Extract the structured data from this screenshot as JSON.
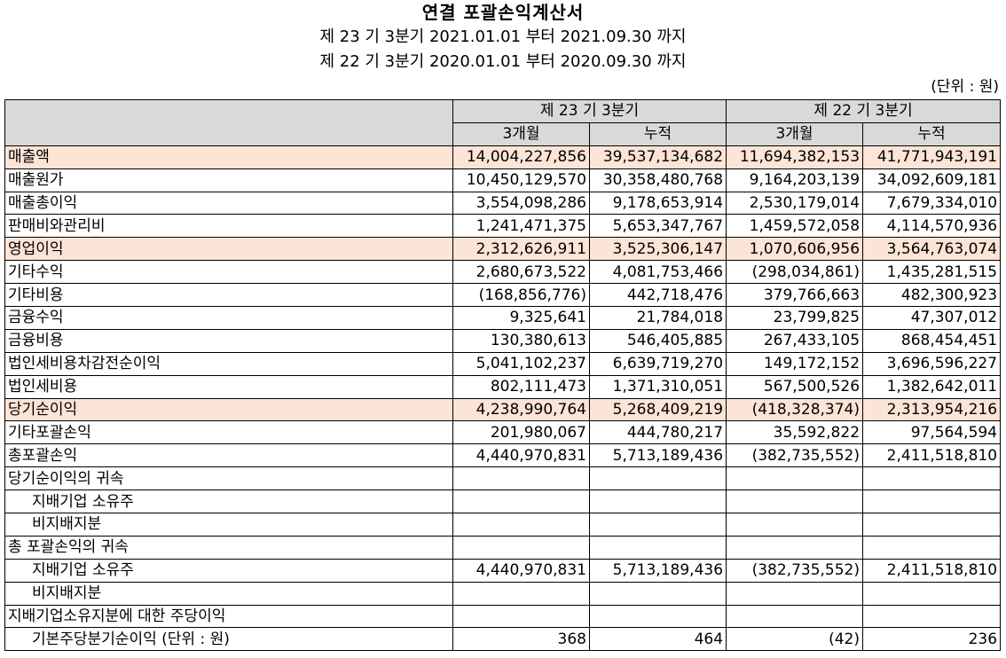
{
  "title": "연결 포괄손익계산서",
  "period_current": "제 23 기 3분기 2021.01.01 부터 2021.09.30 까지",
  "period_prior": "제 22 기 3분기 2020.01.01 부터 2020.09.30 까지",
  "unit": "(단위 : 원)",
  "columns": {
    "current_period": "제 23 기 3분기",
    "prior_period": "제 22 기 3분기",
    "three_month": "3개월",
    "cumulative": "누적"
  },
  "rows": [
    {
      "label": "매출액",
      "highlight": true,
      "values": [
        "14,004,227,856",
        "39,537,134,682",
        "11,694,382,153",
        "41,771,943,191"
      ]
    },
    {
      "label": "매출원가",
      "values": [
        "10,450,129,570",
        "30,358,480,768",
        "9,164,203,139",
        "34,092,609,181"
      ]
    },
    {
      "label": "매출총이익",
      "values": [
        "3,554,098,286",
        "9,178,653,914",
        "2,530,179,014",
        "7,679,334,010"
      ]
    },
    {
      "label": "판매비와관리비",
      "values": [
        "1,241,471,375",
        "5,653,347,767",
        "1,459,572,058",
        "4,114,570,936"
      ]
    },
    {
      "label": "영업이익",
      "highlight": true,
      "values": [
        "2,312,626,911",
        "3,525,306,147",
        "1,070,606,956",
        "3,564,763,074"
      ]
    },
    {
      "label": "기타수익",
      "values": [
        "2,680,673,522",
        "4,081,753,466",
        "(298,034,861)",
        "1,435,281,515"
      ]
    },
    {
      "label": "기타비용",
      "values": [
        "(168,856,776)",
        "442,718,476",
        "379,766,663",
        "482,300,923"
      ]
    },
    {
      "label": "금융수익",
      "values": [
        "9,325,641",
        "21,784,018",
        "23,799,825",
        "47,307,012"
      ]
    },
    {
      "label": "금융비용",
      "values": [
        "130,380,613",
        "546,405,885",
        "267,433,105",
        "868,454,451"
      ]
    },
    {
      "label": "법인세비용차감전순이익",
      "values": [
        "5,041,102,237",
        "6,639,719,270",
        "149,172,152",
        "3,696,596,227"
      ]
    },
    {
      "label": "법인세비용",
      "values": [
        "802,111,473",
        "1,371,310,051",
        "567,500,526",
        "1,382,642,011"
      ]
    },
    {
      "label": "당기순이익",
      "highlight": true,
      "values": [
        "4,238,990,764",
        "5,268,409,219",
        "(418,328,374)",
        "2,313,954,216"
      ]
    },
    {
      "label": "기타포괄손익",
      "values": [
        "201,980,067",
        "444,780,217",
        "35,592,822",
        "97,564,594"
      ]
    },
    {
      "label": "총포괄손익",
      "values": [
        "4,440,970,831",
        "5,713,189,436",
        "(382,735,552)",
        "2,411,518,810"
      ]
    },
    {
      "label": "당기순이익의 귀속",
      "values": [
        "",
        "",
        "",
        ""
      ]
    },
    {
      "label": "지배기업 소유주",
      "indent": true,
      "values": [
        "",
        "",
        "",
        ""
      ]
    },
    {
      "label": "비지배지분",
      "indent": true,
      "values": [
        "",
        "",
        "",
        ""
      ]
    },
    {
      "label": "총 포괄손익의 귀속",
      "values": [
        "",
        "",
        "",
        ""
      ]
    },
    {
      "label": "지배기업 소유주",
      "indent": true,
      "values": [
        "4,440,970,831",
        "5,713,189,436",
        "(382,735,552)",
        "2,411,518,810"
      ]
    },
    {
      "label": "비지배지분",
      "indent": true,
      "values": [
        "",
        "",
        "",
        ""
      ]
    },
    {
      "label": "지배기업소유지분에 대한 주당이익",
      "values": [
        "",
        "",
        "",
        ""
      ]
    },
    {
      "label": "기본주당분기순이익 (단위 : 원)",
      "indent": true,
      "values": [
        "368",
        "464",
        "(42)",
        "236"
      ]
    }
  ]
}
